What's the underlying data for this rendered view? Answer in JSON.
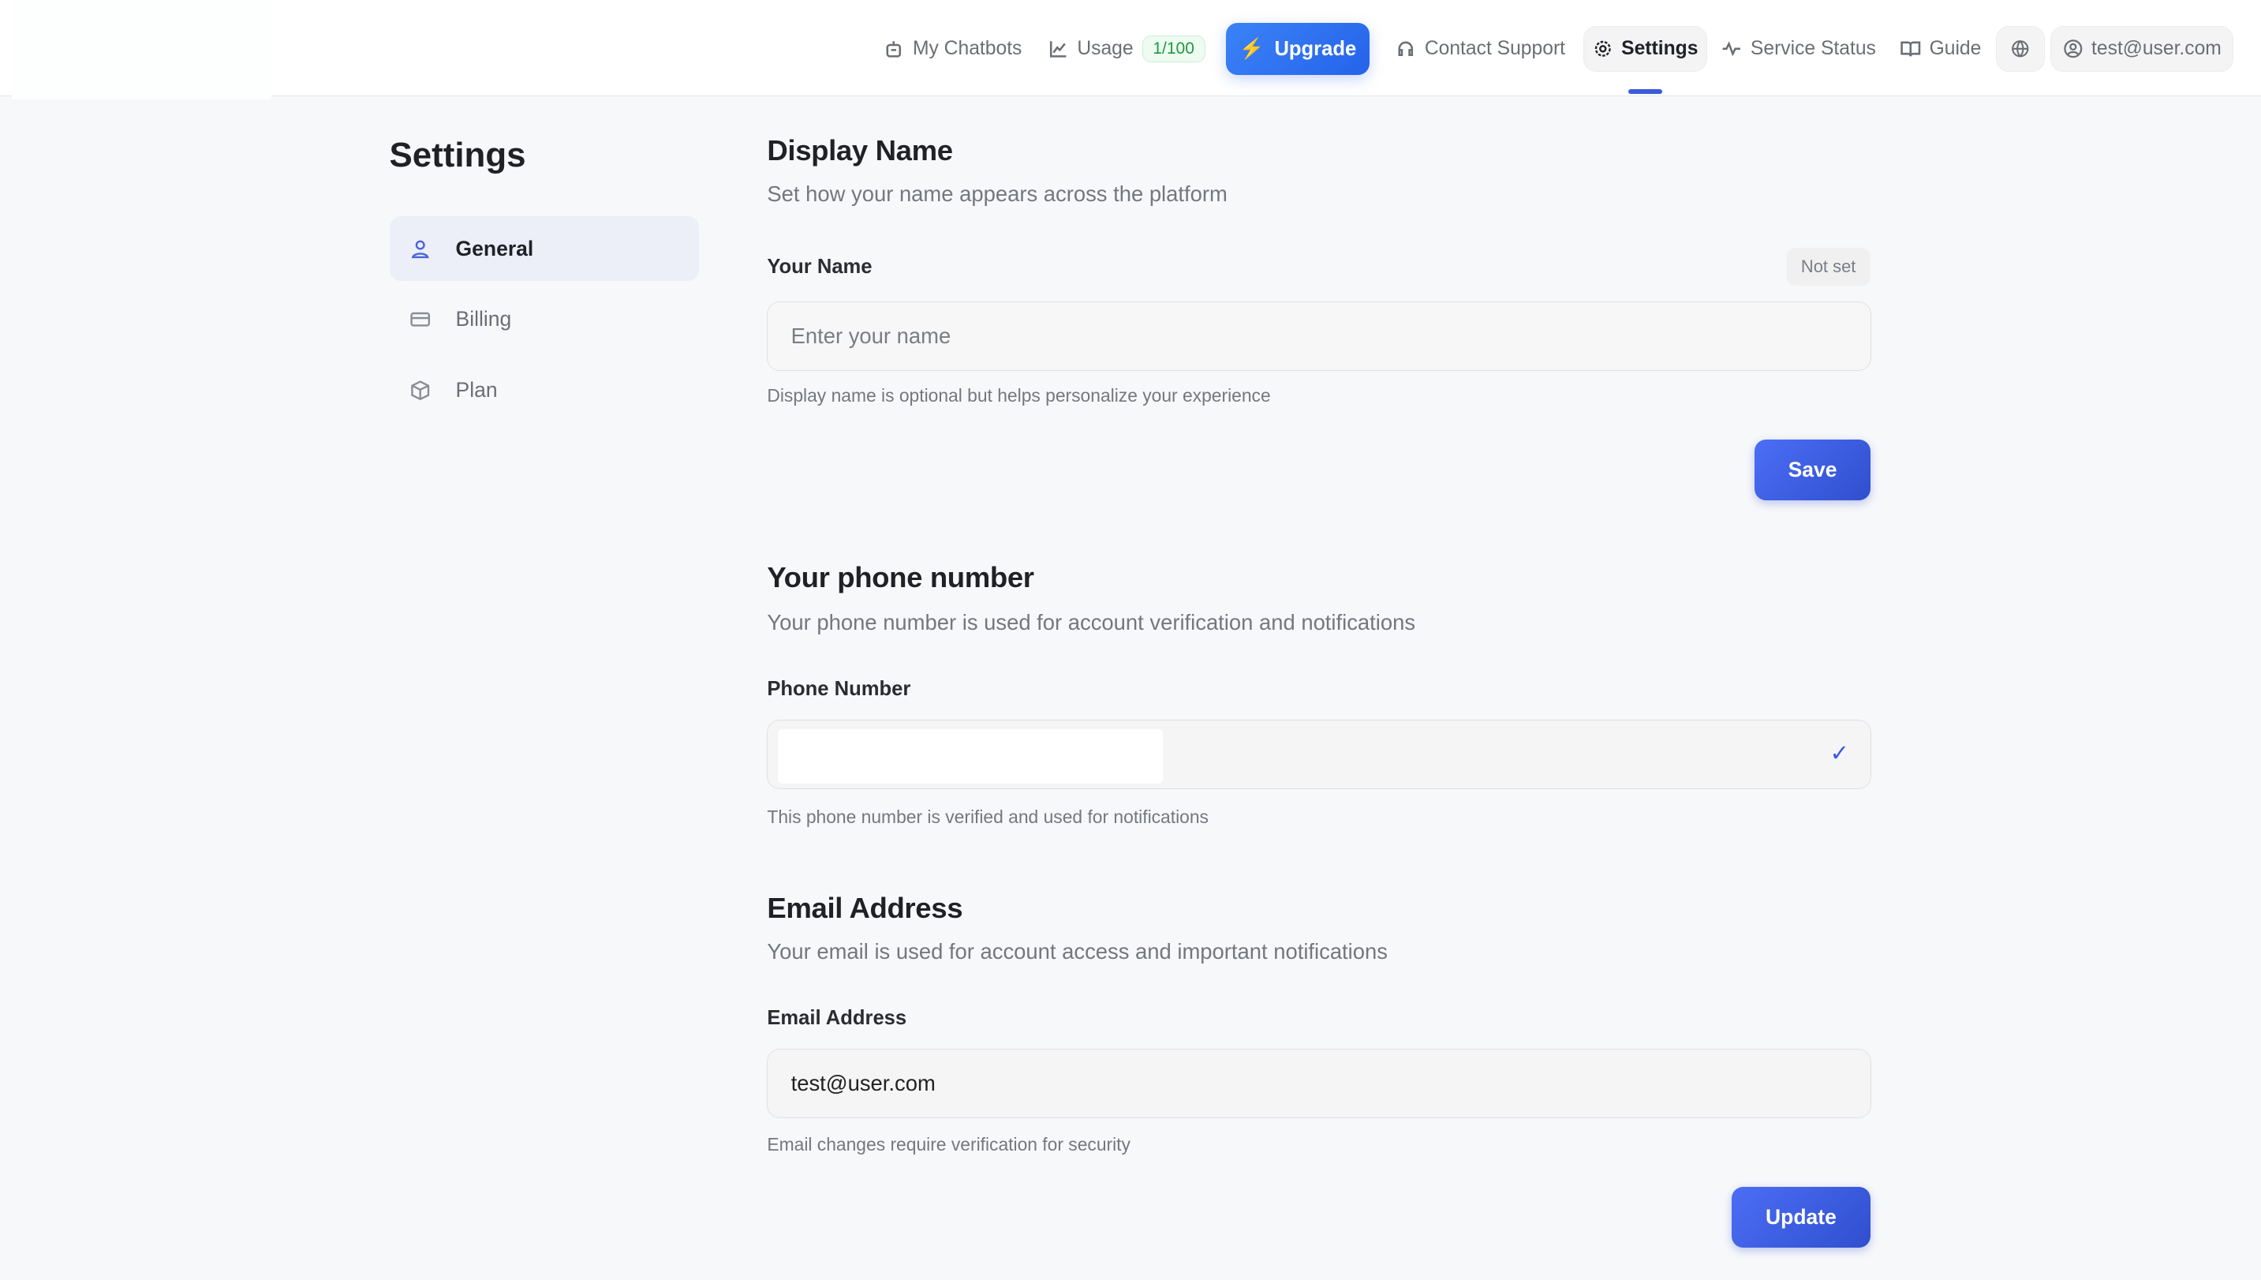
{
  "nav": {
    "my_chatbots": "My Chatbots",
    "usage": "Usage",
    "usage_badge": "1/100",
    "upgrade": "Upgrade",
    "contact_support": "Contact Support",
    "settings": "Settings",
    "service_status": "Service Status",
    "guide": "Guide",
    "user_email": "test@user.com"
  },
  "page_title": "Settings",
  "sidebar": {
    "items": [
      {
        "label": "General",
        "active": true
      },
      {
        "label": "Billing"
      },
      {
        "label": "Plan"
      }
    ]
  },
  "display_name": {
    "title": "Display Name",
    "subtitle": "Set how your name appears across the platform",
    "label": "Your Name",
    "status": "Not set",
    "placeholder": "Enter your name",
    "value": "",
    "help": "Display name is optional but helps personalize your experience",
    "save": "Save"
  },
  "phone": {
    "title": "Your phone number",
    "subtitle": "Your phone number is used for account verification and notifications",
    "label": "Phone Number",
    "verified_icon": "check",
    "help": "This phone number is verified and used for notifications"
  },
  "email": {
    "title": "Email Address",
    "subtitle": "Your email is used for account access and important notifications",
    "label": "Email Address",
    "value": "test@user.com",
    "help": "Email changes require verification for security",
    "update": "Update"
  },
  "colors": {
    "accent": "#2563eb",
    "badge_green": "#1e9a3f"
  }
}
